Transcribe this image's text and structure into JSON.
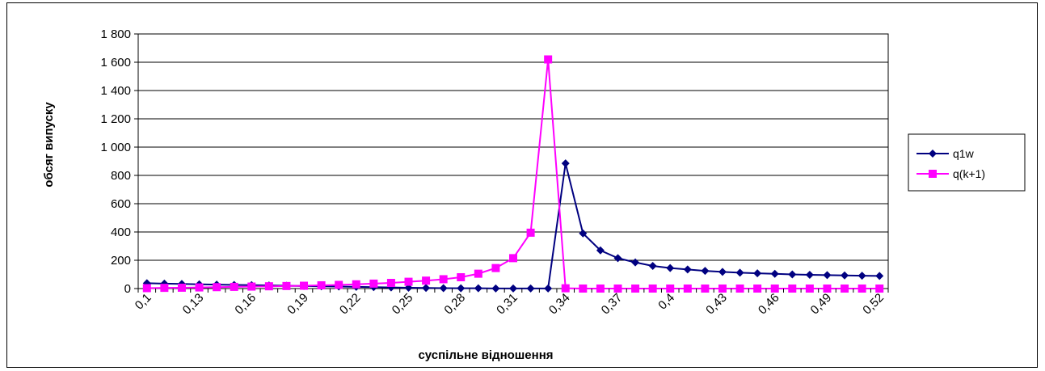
{
  "chart_data": {
    "type": "line",
    "title": "",
    "xlabel": "суспільне відношення",
    "ylabel": "обсяг випуску",
    "ylim": [
      0,
      1800
    ],
    "y_ticks": [
      0,
      200,
      400,
      600,
      800,
      1000,
      1200,
      1400,
      1600,
      1800
    ],
    "y_tick_labels": [
      "0",
      "200",
      "400",
      "600",
      "800",
      "1 000",
      "1 200",
      "1 400",
      "1 600",
      "1 800"
    ],
    "x_tick_labels": [
      "0,1",
      "0,13",
      "0,16",
      "0,19",
      "0,22",
      "0,25",
      "0,28",
      "0,31",
      "0,34",
      "0,37",
      "0,4",
      "0,43",
      "0,46",
      "0,49",
      "0,52"
    ],
    "x": [
      0.1,
      0.11,
      0.12,
      0.13,
      0.14,
      0.15,
      0.16,
      0.17,
      0.18,
      0.19,
      0.2,
      0.21,
      0.22,
      0.23,
      0.24,
      0.25,
      0.26,
      0.27,
      0.28,
      0.29,
      0.3,
      0.31,
      0.32,
      0.33,
      0.34,
      0.35,
      0.36,
      0.37,
      0.38,
      0.39,
      0.4,
      0.41,
      0.42,
      0.43,
      0.44,
      0.45,
      0.46,
      0.47,
      0.48,
      0.49,
      0.5,
      0.51,
      0.52
    ],
    "series": [
      {
        "name": "q1w",
        "color": "#000080",
        "marker": "diamond",
        "values": [
          38,
          35,
          33,
          30,
          28,
          26,
          24,
          22,
          20,
          18,
          16,
          14,
          12,
          10,
          8,
          6,
          4,
          3,
          2,
          2,
          1,
          1,
          1,
          1,
          885,
          390,
          270,
          215,
          185,
          160,
          145,
          135,
          125,
          118,
          112,
          108,
          104,
          100,
          97,
          95,
          93,
          91,
          89
        ]
      },
      {
        "name": "q(k+1)",
        "color": "#FF00FF",
        "marker": "square",
        "values": [
          3,
          5,
          6,
          8,
          10,
          12,
          14,
          16,
          18,
          20,
          23,
          26,
          30,
          35,
          40,
          48,
          56,
          66,
          80,
          105,
          145,
          215,
          395,
          1620,
          2,
          0,
          0,
          0,
          0,
          0,
          0,
          0,
          0,
          0,
          0,
          0,
          0,
          0,
          0,
          0,
          0,
          0,
          0
        ]
      }
    ],
    "grid": true,
    "legend": "right"
  }
}
